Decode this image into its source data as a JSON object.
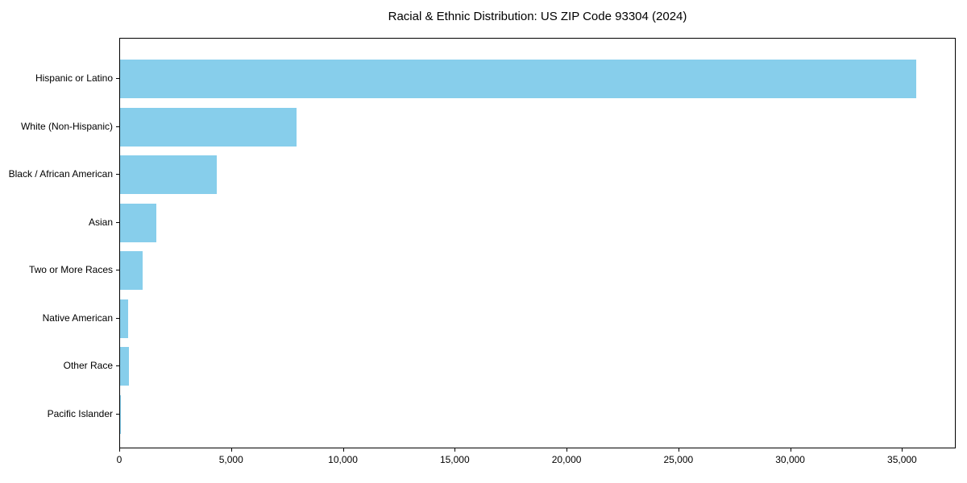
{
  "chart_data": {
    "type": "bar",
    "orientation": "horizontal",
    "title": "Racial & Ethnic Distribution: US ZIP Code 93304 (2024)",
    "categories": [
      "Hispanic or Latino",
      "White (Non-Hispanic)",
      "Black / African American",
      "Asian",
      "Two or More Races",
      "Native American",
      "Other Race",
      "Pacific Islander"
    ],
    "values": [
      35600,
      7890,
      4330,
      1630,
      1000,
      370,
      395,
      45
    ],
    "xlabel": "",
    "ylabel": "",
    "xlim": [
      0,
      37400
    ],
    "xticks": [
      0,
      5000,
      10000,
      15000,
      20000,
      25000,
      30000,
      35000
    ],
    "xtick_labels": [
      "0",
      "5,000",
      "10,000",
      "15,000",
      "20,000",
      "25,000",
      "30,000",
      "35,000"
    ],
    "bar_color": "#87CEEB",
    "background_color": "#FFFFFF",
    "text_color": "#000000",
    "grid": false,
    "legend": null
  }
}
